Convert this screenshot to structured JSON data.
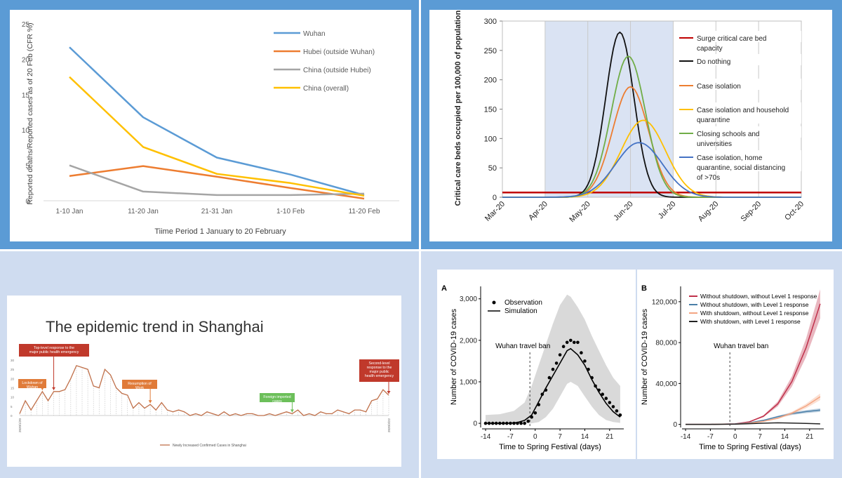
{
  "chart_data": [
    {
      "type": "line",
      "title": "",
      "xlabel": "Tiime Period 1 January to 20 February",
      "ylabel": "Reported deaths/Reported  cases as of 20 Feb (CFR %)",
      "categories": [
        "1-10 Jan",
        "11-20 Jan",
        "21-31 Jan",
        "1-10 Feb",
        "11-20 Feb"
      ],
      "y_ticks": [
        "0",
        "5",
        "10",
        "15",
        "20",
        "25"
      ],
      "ylim": [
        0,
        25
      ],
      "legend_position": "top-right",
      "series": [
        {
          "name": "Wuhan",
          "color": "#5b9bd5",
          "values": [
            21.7,
            11.8,
            6.1,
            3.7,
            0.8
          ]
        },
        {
          "name": "Hubei (outside Wuhan)",
          "color": "#ed7d31",
          "values": [
            3.5,
            4.9,
            3.4,
            1.8,
            0.3
          ]
        },
        {
          "name": "China (outside Hubei)",
          "color": "#a5a5a5",
          "values": [
            5.0,
            1.3,
            0.8,
            0.8,
            1.0
          ]
        },
        {
          "name": "China (overall)",
          "color": "#ffc000",
          "values": [
            17.5,
            7.6,
            3.8,
            2.5,
            0.7
          ]
        }
      ]
    },
    {
      "type": "line",
      "title": "",
      "ylabel": "Critical care beds occupied per 100,000 of population",
      "xlabel": "",
      "categories": [
        "Mar-20",
        "Apr-20",
        "May-20",
        "Jun-20",
        "Jul-20",
        "Aug-20",
        "Sep-20",
        "Oct-20"
      ],
      "y_ticks": [
        "0",
        "50",
        "100",
        "150",
        "200",
        "250",
        "300"
      ],
      "ylim": [
        0,
        300
      ],
      "legend_position": "right",
      "shaded_period": [
        "Apr-20",
        "Jul-20"
      ],
      "series": [
        {
          "name": "Surge critical care bed capacity",
          "color": "#c00000",
          "constant": 8
        },
        {
          "name": "Do nothing",
          "color": "#111111",
          "peak_x": 2.75,
          "peak_y": 281,
          "width": 0.33
        },
        {
          "name": "Case isolation",
          "color": "#ed7d31",
          "peak_x": 3.0,
          "peak_y": 188,
          "width": 0.42
        },
        {
          "name": "Case isolation and household quarantine",
          "color": "#ffc000",
          "peak_x": 3.3,
          "peak_y": 131,
          "width": 0.52
        },
        {
          "name": "Closing schools and universities",
          "color": "#70ad47",
          "peak_x": 2.95,
          "peak_y": 240,
          "width": 0.4
        },
        {
          "name": "Case isolation, home quarantine, social distancing of >70s",
          "color": "#4472c4",
          "peak_x": 3.2,
          "peak_y": 93,
          "width": 0.55
        }
      ]
    },
    {
      "type": "line",
      "title": "The epidemic trend in Shanghai",
      "y_ticks": [
        "0",
        "5",
        "10",
        "15",
        "20",
        "25",
        "30"
      ],
      "ylim": [
        0,
        30
      ],
      "x_range_label": [
        "2020/1/20",
        "2020/3/22"
      ],
      "legend_position": "bottom",
      "series": [
        {
          "name": "Newly Increased Confirmed Cases in Shanghai",
          "color": "#c0704a",
          "values": [
            1,
            8,
            3,
            8,
            13,
            8,
            13,
            13,
            14,
            20,
            27,
            26,
            25,
            16,
            15,
            25,
            22,
            15,
            12,
            11,
            4,
            7,
            4,
            6,
            3,
            7,
            3,
            2,
            3,
            2,
            0,
            1,
            0,
            2,
            1,
            0,
            2,
            0,
            1,
            0,
            1,
            1,
            0,
            0,
            1,
            0,
            1,
            2,
            1,
            3,
            0,
            1,
            0,
            2,
            1,
            1,
            3,
            2,
            1,
            3,
            3,
            2,
            8,
            9,
            14,
            11
          ]
        }
      ],
      "annotations": [
        {
          "text": "Top-level response to the major public health emergency",
          "color": "#c0392b"
        },
        {
          "text": "Lockdown of Wuhan",
          "color": "#e07b39"
        },
        {
          "text": "Resumption of Work",
          "color": "#e07b39"
        },
        {
          "text": "Foreign imported cases",
          "color": "#6cbf5a"
        },
        {
          "text": "Second-level response to the major public health emergency",
          "color": "#c0392b"
        }
      ]
    },
    {
      "type": "scatter",
      "panel_label": "A",
      "xlabel": "Time to Spring Festival (days)",
      "ylabel": "Number of COVID-19 cases",
      "x_ticks": [
        "-14",
        "-7",
        "0",
        "7",
        "14",
        "21"
      ],
      "y_ticks": [
        "0",
        "1,000",
        "2,000",
        "3,000"
      ],
      "xlim": [
        -15,
        25
      ],
      "ylim": [
        -100,
        3300
      ],
      "vline": {
        "x": -1.5,
        "label": "Wuhan travel ban"
      },
      "legend_position": "top-left",
      "series": [
        {
          "name": "Observation",
          "kind": "points",
          "x": [
            -14,
            -13,
            -12,
            -11,
            -10,
            -9,
            -8,
            -7,
            -6,
            -5,
            -4,
            -3,
            -2,
            -1,
            0,
            1,
            2,
            3,
            4,
            5,
            6,
            7,
            8,
            9,
            10,
            11,
            12,
            13,
            14,
            15,
            16,
            17,
            18,
            19,
            20,
            21,
            22,
            23,
            24
          ],
          "y": [
            0,
            0,
            0,
            0,
            0,
            0,
            0,
            0,
            0,
            0,
            0,
            0,
            50,
            150,
            250,
            450,
            700,
            800,
            1100,
            1300,
            1450,
            1650,
            1850,
            1950,
            2000,
            1950,
            1950,
            1700,
            1500,
            1300,
            1100,
            900,
            800,
            700,
            600,
            500,
            400,
            300,
            200
          ]
        },
        {
          "name": "Simulation",
          "kind": "line",
          "x": [
            -14,
            -10,
            -7,
            -5,
            -3,
            -1,
            1,
            3,
            5,
            7,
            9,
            10,
            12,
            14,
            16,
            18,
            20,
            22,
            24
          ],
          "y": [
            0,
            0,
            5,
            20,
            70,
            200,
            520,
            850,
            1150,
            1450,
            1750,
            1800,
            1650,
            1400,
            1050,
            750,
            480,
            280,
            150
          ]
        },
        {
          "name": "Confidence band",
          "kind": "band",
          "x": [
            -14,
            -10,
            -6,
            -3,
            -1,
            1,
            3,
            5,
            7,
            9,
            10,
            12,
            14,
            16,
            18,
            20,
            22,
            24
          ],
          "lower": [
            0,
            0,
            0,
            0,
            0,
            30,
            150,
            350,
            650,
            950,
            1000,
            900,
            650,
            400,
            200,
            80,
            30,
            10
          ],
          "upper": [
            200,
            220,
            300,
            500,
            900,
            1400,
            1900,
            2400,
            2850,
            3100,
            3050,
            2800,
            2500,
            2100,
            1750,
            1400,
            1100,
            900
          ]
        }
      ]
    },
    {
      "type": "line",
      "panel_label": "B",
      "xlabel": "Time to Spring Festival (days)",
      "ylabel": "Number of COVID-19 cases",
      "x_ticks": [
        "-14",
        "-7",
        "0",
        "7",
        "14",
        "21"
      ],
      "y_ticks": [
        "0",
        "40,000",
        "80,000",
        "120,000"
      ],
      "xlim": [
        -15,
        25
      ],
      "ylim": [
        -3000,
        135000
      ],
      "vline": {
        "x": -1.5,
        "label": "Wuhan travel ban"
      },
      "legend_position": "top-left",
      "series": [
        {
          "name": "Without shutdown, without Level 1 response",
          "color": "#c0304a",
          "x": [
            -14,
            -7,
            0,
            4,
            8,
            12,
            16,
            20,
            24
          ],
          "y": [
            0,
            0,
            500,
            2500,
            8000,
            20000,
            42000,
            75000,
            118000
          ]
        },
        {
          "name": "Without shutdown, with Level 1 response",
          "color": "#4a7fa8",
          "x": [
            -14,
            -7,
            0,
            4,
            8,
            12,
            16,
            20,
            24
          ],
          "y": [
            0,
            0,
            400,
            1500,
            4000,
            7500,
            10500,
            12500,
            14000
          ]
        },
        {
          "name": "With shutdown, without Level 1 response",
          "color": "#f4a582",
          "x": [
            -14,
            -7,
            0,
            4,
            8,
            12,
            16,
            20,
            24
          ],
          "y": [
            0,
            0,
            300,
            1200,
            3000,
            6000,
            11000,
            18000,
            27000
          ]
        },
        {
          "name": "With shutdown, with Level 1 response",
          "color": "#222222",
          "x": [
            -14,
            -7,
            0,
            4,
            8,
            12,
            16,
            20,
            24
          ],
          "y": [
            0,
            0,
            200,
            700,
            1200,
            1500,
            1300,
            900,
            500
          ]
        }
      ]
    }
  ]
}
